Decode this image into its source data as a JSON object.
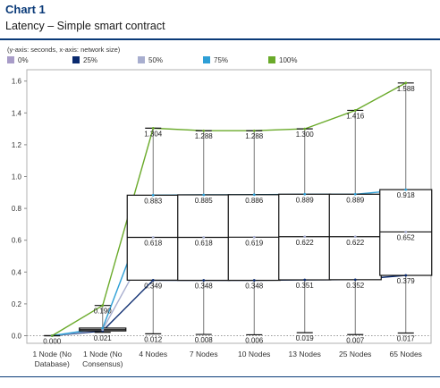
{
  "header": {
    "title": "Chart 1",
    "subtitle": "Latency – Simple smart contract",
    "axis_note": "(y-axis: seconds, x-axis: network size)"
  },
  "colors": {
    "p0": "#a89cc8",
    "p25": "#0a2a6e",
    "p50": "#a8aecf",
    "p75": "#2e9fd6",
    "p100": "#6aaa2a",
    "brand": "#0a3a78"
  },
  "legend": [
    {
      "label": "0%",
      "key": "p0"
    },
    {
      "label": "25%",
      "key": "p25"
    },
    {
      "label": "50%",
      "key": "p50"
    },
    {
      "label": "75%",
      "key": "p75"
    },
    {
      "label": "100%",
      "key": "p100"
    }
  ],
  "chart_data": {
    "type": "box",
    "title": "Latency – Simple smart contract",
    "xlabel": "",
    "ylabel": "",
    "ylim": [
      0,
      1.7
    ],
    "yticks": [
      "0.0",
      "0.2",
      "0.4",
      "0.6",
      "0.8",
      "1.0",
      "1.2",
      "1.4",
      "1.6"
    ],
    "grid": false,
    "legend_position": "top-left",
    "categories": [
      [
        "1 Node (No",
        "Database)"
      ],
      [
        "1 Node (No",
        "Consensus)"
      ],
      [
        "4 Nodes"
      ],
      [
        "7 Nodes"
      ],
      [
        "10 Nodes"
      ],
      [
        "13 Nodes"
      ],
      [
        "25 Nodes"
      ],
      [
        "65 Nodes"
      ]
    ],
    "series": [
      {
        "name": "0%",
        "values": [
          0.0,
          0.021,
          0.012,
          0.008,
          0.006,
          0.019,
          0.007,
          0.017
        ]
      },
      {
        "name": "25%",
        "values": [
          0.0,
          0.03,
          0.349,
          0.348,
          0.348,
          0.351,
          0.352,
          0.379
        ]
      },
      {
        "name": "50%",
        "values": [
          0.0,
          0.038,
          0.618,
          0.618,
          0.619,
          0.622,
          0.622,
          0.652
        ]
      },
      {
        "name": "75%",
        "values": [
          0.0,
          0.048,
          0.883,
          0.885,
          0.886,
          0.889,
          0.889,
          0.918
        ]
      },
      {
        "name": "100%",
        "values": [
          0.0,
          0.19,
          1.304,
          1.288,
          1.288,
          1.3,
          1.416,
          1.588
        ]
      }
    ],
    "labels": {
      "min": [
        "0.000",
        "0.021",
        "0.012",
        "0.008",
        "0.006",
        "0.019",
        "0.007",
        "0.017"
      ],
      "q1": [
        "",
        "",
        "0.349",
        "0.348",
        "0.348",
        "0.351",
        "0.352",
        "0.379"
      ],
      "median": [
        "",
        "",
        "0.618",
        "0.618",
        "0.619",
        "0.622",
        "0.622",
        "0.652"
      ],
      "q3": [
        "",
        "",
        "0.883",
        "0.885",
        "0.886",
        "0.889",
        "0.889",
        "0.918"
      ],
      "max": [
        "",
        "0.190",
        "1.304",
        "1.288",
        "1.288",
        "1.300",
        "1.416",
        "1.588"
      ]
    }
  }
}
